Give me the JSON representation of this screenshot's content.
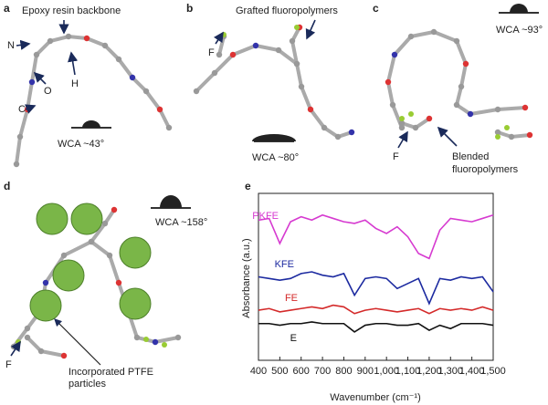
{
  "panels": [
    {
      "letter": "a",
      "labels": [
        "Epoxy resin backbone",
        "N",
        "O",
        "C",
        "H",
        "WCA ~43°"
      ]
    },
    {
      "letter": "b",
      "labels": [
        "Grafted fluoropolymers",
        "F",
        "WCA ~80°"
      ]
    },
    {
      "letter": "c",
      "labels": [
        "WCA ~93°",
        "F",
        "Blended",
        "fluoropolymers"
      ]
    },
    {
      "letter": "d",
      "labels": [
        "WCA ~158°",
        "F",
        "Incorporated PTFE",
        "particles"
      ]
    }
  ],
  "chart_data": {
    "type": "line",
    "panel_label": "e",
    "x_label": "Wavenumber (cm⁻¹)",
    "y_label": "Absorbance (a.u.)",
    "x": [
      400,
      450,
      500,
      550,
      600,
      650,
      700,
      750,
      800,
      850,
      900,
      950,
      1000,
      1050,
      1100,
      1150,
      1200,
      1250,
      1300,
      1350,
      1400,
      1450,
      1500
    ],
    "xlim": [
      400,
      1500
    ],
    "xticks": [
      400,
      500,
      600,
      700,
      800,
      900,
      {
        "value": 1000,
        "label": "1,000"
      },
      {
        "value": 1100,
        "label": "1,100"
      },
      {
        "value": 1200,
        "label": "1,200"
      },
      {
        "value": 1300,
        "label": "1,300"
      },
      {
        "value": 1400,
        "label": "1,400"
      },
      {
        "value": 1500,
        "label": "1,500"
      }
    ],
    "ylim": [
      0,
      10
    ],
    "series": [
      {
        "name": "PKFE",
        "color": "#d63ad0",
        "values": [
          8.4,
          8.5,
          7.0,
          8.3,
          8.6,
          8.4,
          8.7,
          8.5,
          8.3,
          8.2,
          8.4,
          7.9,
          7.6,
          8.0,
          7.4,
          6.4,
          6.1,
          7.8,
          8.5,
          8.4,
          8.3,
          8.5,
          8.7
        ]
      },
      {
        "name": "KFE",
        "color": "#1c2aa0",
        "values": [
          5.0,
          4.9,
          4.8,
          4.9,
          5.2,
          5.3,
          5.1,
          5.0,
          5.2,
          3.9,
          4.9,
          5.0,
          4.9,
          4.3,
          4.6,
          4.9,
          3.4,
          4.9,
          4.8,
          5.0,
          4.9,
          5.0,
          4.1
        ]
      },
      {
        "name": "FE",
        "color": "#d42a2a",
        "values": [
          3.0,
          3.1,
          2.9,
          3.0,
          3.1,
          3.2,
          3.1,
          3.3,
          3.2,
          2.8,
          3.0,
          3.1,
          3.0,
          2.9,
          3.0,
          3.1,
          2.8,
          3.1,
          3.0,
          3.1,
          3.0,
          3.2,
          3.0
        ]
      },
      {
        "name": "E",
        "color": "#111111",
        "values": [
          2.2,
          2.2,
          2.1,
          2.2,
          2.2,
          2.3,
          2.2,
          2.2,
          2.2,
          1.7,
          2.1,
          2.2,
          2.2,
          2.1,
          2.1,
          2.2,
          1.8,
          2.1,
          1.9,
          2.2,
          2.2,
          2.2,
          2.1
        ]
      }
    ]
  }
}
